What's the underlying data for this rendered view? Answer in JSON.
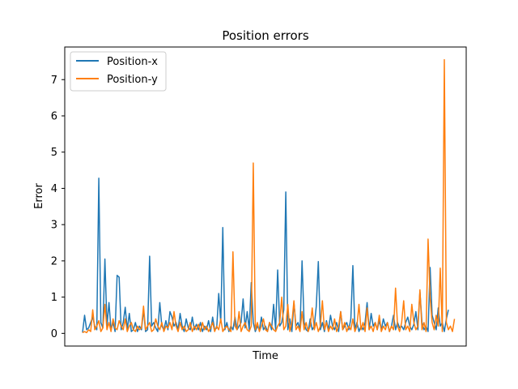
{
  "chart_data": {
    "type": "line",
    "title": "Position errors",
    "xlabel": "Time",
    "ylabel": "Error",
    "ylim": [
      -0.35,
      7.9
    ],
    "yticks": [
      0,
      1,
      2,
      3,
      4,
      5,
      6,
      7
    ],
    "x_ticks_shown": false,
    "grid": false,
    "legend_position": "top-left",
    "series": [
      {
        "name": "Position-x",
        "color": "#1f77b4",
        "values": [
          0.02,
          0.5,
          0.1,
          0.15,
          0.3,
          0.45,
          0.2,
          0.1,
          4.28,
          0.3,
          0.15,
          2.05,
          0.2,
          0.85,
          0.1,
          0.3,
          0.05,
          1.6,
          1.55,
          0.1,
          0.3,
          0.72,
          0.1,
          0.55,
          0.05,
          0.1,
          0.3,
          0.05,
          0.2,
          0.1,
          0.65,
          0.05,
          0.1,
          2.13,
          0.2,
          0.3,
          0.15,
          0.05,
          0.85,
          0.2,
          0.1,
          0.35,
          0.1,
          0.6,
          0.45,
          0.2,
          0.3,
          0.1,
          0.55,
          0.2,
          0.05,
          0.4,
          0.15,
          0.1,
          0.45,
          0.1,
          0.25,
          0.1,
          0.3,
          0.05,
          0.2,
          0.1,
          0.35,
          0.05,
          0.45,
          0.1,
          0.15,
          1.1,
          0.3,
          2.92,
          0.1,
          0.3,
          0.05,
          0.2,
          0.1,
          0.45,
          0.1,
          0.2,
          0.3,
          0.95,
          0.15,
          0.6,
          0.1,
          1.4,
          0.3,
          0.05,
          0.2,
          0.1,
          0.45,
          0.1,
          0.2,
          0.05,
          0.3,
          0.1,
          0.8,
          0.1,
          1.75,
          0.2,
          0.3,
          0.65,
          3.9,
          0.1,
          0.4,
          0.05,
          0.85,
          0.2,
          0.3,
          0.1,
          2.0,
          0.3,
          0.1,
          0.05,
          0.4,
          0.1,
          0.2,
          0.75,
          1.98,
          0.1,
          0.3,
          0.05,
          0.35,
          0.1,
          0.5,
          0.2,
          0.1,
          0.3,
          0.05,
          0.6,
          0.1,
          0.2,
          0.3,
          0.1,
          0.4,
          1.87,
          0.1,
          0.3,
          0.05,
          0.2,
          0.1,
          0.3,
          0.85,
          0.1,
          0.55,
          0.2,
          0.3,
          0.1,
          0.35,
          0.1,
          0.4,
          0.2,
          0.3,
          0.05,
          0.2,
          0.5,
          0.1,
          0.3,
          0.15,
          0.2,
          0.1,
          0.3,
          0.45,
          0.2,
          0.1,
          0.25,
          0.6,
          0.1,
          1.15,
          0.3,
          0.1,
          0.2,
          0.05,
          1.82,
          0.5,
          0.3,
          0.1,
          0.7,
          0.2,
          0.3,
          0.05,
          0.4,
          0.65
        ],
        "end_label": ""
      },
      {
        "name": "Position-y",
        "color": "#ff7f0e",
        "values": [
          0.02,
          0.05,
          0.02,
          0.1,
          0.05,
          0.65,
          0.1,
          0.2,
          0.35,
          0.05,
          0.15,
          0.8,
          0.1,
          0.3,
          0.05,
          0.4,
          0.15,
          0.1,
          0.35,
          0.2,
          0.1,
          0.4,
          0.05,
          0.2,
          0.3,
          0.1,
          0.05,
          0.2,
          0.1,
          0.15,
          0.75,
          0.1,
          0.2,
          0.3,
          0.05,
          0.1,
          0.4,
          0.2,
          0.1,
          0.3,
          0.05,
          0.2,
          0.15,
          0.3,
          0.1,
          0.6,
          0.2,
          0.05,
          0.3,
          0.1,
          0.2,
          0.05,
          0.1,
          0.3,
          0.05,
          0.2,
          0.1,
          0.25,
          0.05,
          0.3,
          0.1,
          0.2,
          0.05,
          0.15,
          0.3,
          0.05,
          0.2,
          0.1,
          0.4,
          0.05,
          0.15,
          0.2,
          0.1,
          0.05,
          2.25,
          0.2,
          0.1,
          0.6,
          0.05,
          0.2,
          0.3,
          0.1,
          0.05,
          0.2,
          4.7,
          0.1,
          0.3,
          0.05,
          0.2,
          0.4,
          0.1,
          0.05,
          0.3,
          0.2,
          0.1,
          0.05,
          0.2,
          0.3,
          1.0,
          0.1,
          0.2,
          0.8,
          0.05,
          0.3,
          0.9,
          0.1,
          0.2,
          0.05,
          0.6,
          0.1,
          0.3,
          0.05,
          0.2,
          0.7,
          0.1,
          0.3,
          0.05,
          0.2,
          0.9,
          0.1,
          0.3,
          0.05,
          0.2,
          0.1,
          0.4,
          0.05,
          0.2,
          0.6,
          0.1,
          0.3,
          0.05,
          0.2,
          0.1,
          0.4,
          0.05,
          0.2,
          0.8,
          0.1,
          0.3,
          0.05,
          0.7,
          0.1,
          0.2,
          0.05,
          0.3,
          0.1,
          0.5,
          0.05,
          0.2,
          0.1,
          0.3,
          0.05,
          0.2,
          0.1,
          1.25,
          0.2,
          0.05,
          0.3,
          0.9,
          0.1,
          0.2,
          0.05,
          0.8,
          0.3,
          0.1,
          0.2,
          1.2,
          0.1,
          0.3,
          0.05,
          2.6,
          1.0,
          0.3,
          0.1,
          0.5,
          0.2,
          1.8,
          0.05,
          7.55,
          0.3,
          0.1,
          0.2,
          0.05,
          0.4
        ],
        "end_label": ""
      }
    ]
  }
}
